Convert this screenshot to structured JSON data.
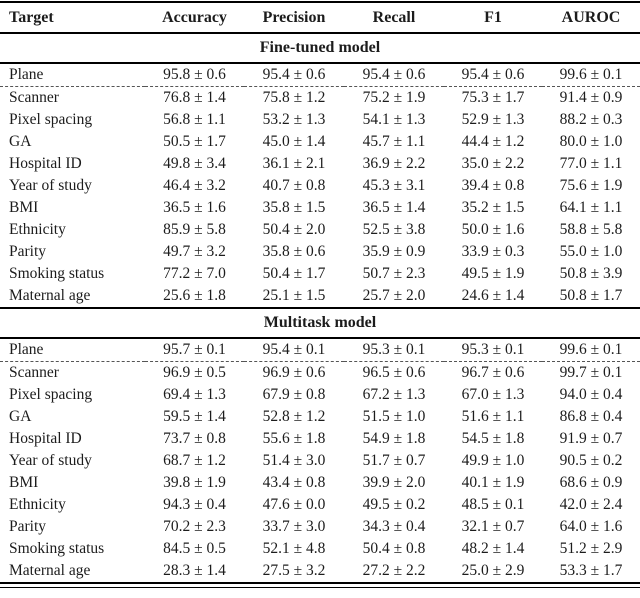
{
  "table": {
    "columns": [
      "Target",
      "Accuracy",
      "Precision",
      "Recall",
      "F1",
      "AUROC"
    ],
    "sections": [
      {
        "title": "Fine-tuned model",
        "rows": [
          {
            "target": "Plane",
            "values": [
              "95.8 ± 0.6",
              "95.4 ± 0.6",
              "95.4 ± 0.6",
              "95.4 ± 0.6",
              "99.6 ± 0.1"
            ]
          },
          {
            "target": "Scanner",
            "values": [
              "76.8 ± 1.4",
              "75.8 ± 1.2",
              "75.2 ± 1.9",
              "75.3 ± 1.7",
              "91.4 ± 0.9"
            ]
          },
          {
            "target": "Pixel spacing",
            "values": [
              "56.8 ± 1.1",
              "53.2 ± 1.3",
              "54.1 ± 1.3",
              "52.9 ± 1.3",
              "88.2 ± 0.3"
            ]
          },
          {
            "target": "GA",
            "values": [
              "50.5 ± 1.7",
              "45.0 ± 1.4",
              "45.7 ± 1.1",
              "44.4 ± 1.2",
              "80.0 ± 1.0"
            ]
          },
          {
            "target": "Hospital ID",
            "values": [
              "49.8 ± 3.4",
              "36.1 ± 2.1",
              "36.9 ± 2.2",
              "35.0 ± 2.2",
              "77.0 ± 1.1"
            ]
          },
          {
            "target": "Year of study",
            "values": [
              "46.4 ± 3.2",
              "40.7 ± 0.8",
              "45.3 ± 3.1",
              "39.4 ± 0.8",
              "75.6 ± 1.9"
            ]
          },
          {
            "target": "BMI",
            "values": [
              "36.5 ± 1.6",
              "35.8 ± 1.5",
              "36.5 ± 1.4",
              "35.2 ± 1.5",
              "64.1 ± 1.1"
            ]
          },
          {
            "target": "Ethnicity",
            "values": [
              "85.9 ± 5.8",
              "50.4 ± 2.0",
              "52.5 ± 3.8",
              "50.0 ± 1.6",
              "58.8 ± 5.8"
            ]
          },
          {
            "target": "Parity",
            "values": [
              "49.7 ± 3.2",
              "35.8 ± 0.6",
              "35.9 ± 0.9",
              "33.9 ± 0.3",
              "55.0 ± 1.0"
            ]
          },
          {
            "target": "Smoking status",
            "values": [
              "77.2 ± 7.0",
              "50.4 ± 1.7",
              "50.7 ± 2.3",
              "49.5 ± 1.9",
              "50.8 ± 3.9"
            ]
          },
          {
            "target": "Maternal age",
            "values": [
              "25.6 ± 1.8",
              "25.1 ± 1.5",
              "25.7 ± 2.0",
              "24.6 ± 1.4",
              "50.8 ± 1.7"
            ]
          }
        ]
      },
      {
        "title": "Multitask model",
        "rows": [
          {
            "target": "Plane",
            "values": [
              "95.7 ± 0.1",
              "95.4 ± 0.1",
              "95.3 ± 0.1",
              "95.3 ± 0.1",
              "99.6 ± 0.1"
            ]
          },
          {
            "target": "Scanner",
            "values": [
              "96.9 ± 0.5",
              "96.9 ± 0.6",
              "96.5 ± 0.6",
              "96.7 ± 0.6",
              "99.7 ± 0.1"
            ]
          },
          {
            "target": "Pixel spacing",
            "values": [
              "69.4 ± 1.3",
              "67.9 ± 0.8",
              "67.2 ± 1.3",
              "67.0 ± 1.3",
              "94.0 ± 0.4"
            ]
          },
          {
            "target": "GA",
            "values": [
              "59.5 ± 1.4",
              "52.8 ± 1.2",
              "51.5 ± 1.0",
              "51.6 ± 1.1",
              "86.8 ± 0.4"
            ]
          },
          {
            "target": "Hospital ID",
            "values": [
              "73.7 ± 0.8",
              "55.6 ± 1.8",
              "54.9 ± 1.8",
              "54.5 ± 1.8",
              "91.9 ± 0.7"
            ]
          },
          {
            "target": "Year of study",
            "values": [
              "68.7 ± 1.2",
              "51.4 ± 3.0",
              "51.7 ± 0.7",
              "49.9 ± 1.0",
              "90.5 ± 0.2"
            ]
          },
          {
            "target": "BMI",
            "values": [
              "39.8 ± 1.9",
              "43.4 ± 0.8",
              "39.9 ± 2.0",
              "40.1 ± 1.9",
              "68.6 ± 0.9"
            ]
          },
          {
            "target": "Ethnicity",
            "values": [
              "94.3 ± 0.4",
              "47.6 ± 0.0",
              "49.5 ± 0.2",
              "48.5 ± 0.1",
              "42.0 ± 2.4"
            ]
          },
          {
            "target": "Parity",
            "values": [
              "70.2 ± 2.3",
              "33.7 ± 3.0",
              "34.3 ± 0.4",
              "32.1 ± 0.7",
              "64.0 ± 1.6"
            ]
          },
          {
            "target": "Smoking status",
            "values": [
              "84.5 ± 0.5",
              "52.1 ± 4.8",
              "50.4 ± 0.8",
              "48.2 ± 1.4",
              "51.2 ± 2.9"
            ]
          },
          {
            "target": "Maternal age",
            "values": [
              "28.3 ± 1.4",
              "27.5 ± 3.2",
              "27.2 ± 2.2",
              "25.0 ± 2.9",
              "53.3 ± 1.7"
            ]
          }
        ]
      }
    ]
  }
}
